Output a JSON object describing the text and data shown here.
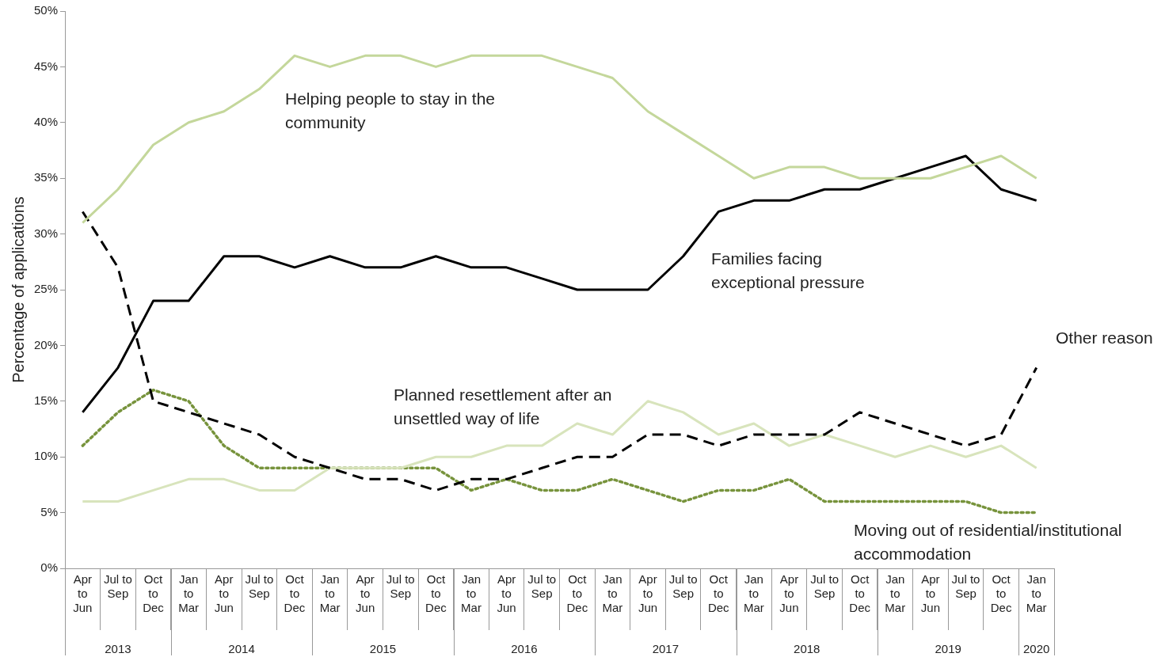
{
  "chart_data": {
    "type": "line",
    "ylabel": "Percentage of applications",
    "categories": [
      "Apr to Jun",
      "Jul to Sep",
      "Oct to Dec",
      "Jan to Mar",
      "Apr to Jun",
      "Jul to Sep",
      "Oct to Dec",
      "Jan to Mar",
      "Apr to Jun",
      "Jul to Sep",
      "Oct to Dec",
      "Jan to Mar",
      "Apr to Jun",
      "Jul to Sep",
      "Oct to Dec",
      "Jan to Mar",
      "Apr to Jun",
      "Jul to Sep",
      "Oct to Dec",
      "Jan to Mar",
      "Apr to Jun",
      "Jul to Sep",
      "Oct to Dec",
      "Jan to Mar",
      "Apr to Jun",
      "Jul to Sep",
      "Oct to Dec",
      "Jan to Mar"
    ],
    "series": [
      {
        "name": "Helping people to stay in the community",
        "color": "#c4d79b",
        "line_style": "solid",
        "values": [
          31,
          34,
          38,
          40,
          41,
          43,
          46,
          45,
          46,
          46,
          45,
          46,
          46,
          46,
          45,
          44,
          41,
          39,
          37,
          35,
          36,
          36,
          35,
          35,
          35,
          36,
          37,
          35
        ]
      },
      {
        "name": "Families facing exceptional pressure",
        "color": "#000000",
        "line_style": "solid",
        "values": [
          14,
          18,
          24,
          24,
          28,
          28,
          27,
          28,
          27,
          27,
          28,
          27,
          27,
          26,
          25,
          25,
          25,
          28,
          32,
          33,
          33,
          34,
          34,
          35,
          36,
          37,
          34,
          33
        ]
      },
      {
        "name": "Other reason",
        "color": "#000000",
        "line_style": "dashed",
        "values": [
          32,
          27,
          15,
          14,
          13,
          12,
          10,
          9,
          8,
          8,
          7,
          8,
          8,
          9,
          10,
          10,
          12,
          12,
          11,
          12,
          12,
          12,
          14,
          13,
          12,
          11,
          12,
          18
        ]
      },
      {
        "name": "Planned resettlement after an unsettled way of life",
        "color": "#d8e4bc",
        "line_style": "solid",
        "values": [
          6,
          6,
          7,
          8,
          8,
          7,
          7,
          9,
          9,
          9,
          10,
          10,
          11,
          11,
          13,
          12,
          15,
          14,
          12,
          13,
          11,
          12,
          11,
          10,
          11,
          10,
          11,
          9
        ]
      },
      {
        "name": "Moving out of residential/institutional accommodation",
        "color": "#77933c",
        "line_style": "dotted",
        "values": [
          11,
          14,
          16,
          15,
          11,
          9,
          9,
          9,
          9,
          9,
          9,
          7,
          8,
          7,
          7,
          8,
          7,
          6,
          7,
          7,
          8,
          6,
          6,
          6,
          6,
          6,
          5,
          5
        ]
      }
    ],
    "annotations": [
      "2013",
      "2014",
      "2015",
      "2016",
      "2017",
      "2018",
      "2019",
      "2020"
    ],
    "ylim": [
      0,
      50
    ],
    "yticks": [
      {
        "value": 0,
        "label": "0%"
      },
      {
        "value": 5,
        "label": "5%"
      },
      {
        "value": 10,
        "label": "10%"
      },
      {
        "value": 15,
        "label": "15%"
      },
      {
        "value": 20,
        "label": "20%"
      },
      {
        "value": 25,
        "label": "25%"
      },
      {
        "value": 30,
        "label": "30%"
      },
      {
        "value": 35,
        "label": "35%"
      },
      {
        "value": 40,
        "label": "40%"
      },
      {
        "value": 45,
        "label": "45%"
      },
      {
        "value": 50,
        "label": "50%"
      }
    ],
    "grid": false,
    "legend": false,
    "marker": "none"
  }
}
